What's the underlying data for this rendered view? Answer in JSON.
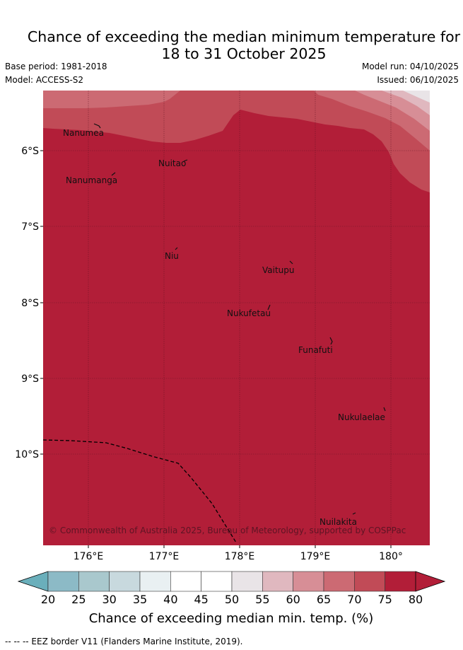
{
  "header": {
    "title_line1": "Chance of exceeding the median minimum temperature for",
    "title_line2": "18 to 31 October 2025",
    "base_period": "Base period: 1981-2018",
    "model": "Model: ACCESS-S2",
    "model_run": "Model run: 04/10/2025",
    "issued": "Issued: 06/10/2025"
  },
  "map": {
    "places": [
      "Nanumea",
      "Nuitao",
      "Nanumanga",
      "Niu",
      "Vaitupu",
      "Nukufetau",
      "Funafuti",
      "Nukulaelae",
      "Nuilakita"
    ],
    "copyright": "© Commonwealth of Australia 2025, Bureau of Meteorology, supported by COSPPac",
    "lon_ticks": [
      "176°E",
      "177°E",
      "178°E",
      "179°E",
      "180°"
    ],
    "lat_ticks": [
      "6°S",
      "7°S",
      "8°S",
      "9°S",
      "10°S"
    ]
  },
  "colorbar": {
    "ticks": [
      "20",
      "25",
      "30",
      "35",
      "40",
      "45",
      "50",
      "55",
      "60",
      "65",
      "70",
      "75",
      "80"
    ],
    "colors": [
      "#6aafbb",
      "#8cbac6",
      "#a9c8cd",
      "#c8d9de",
      "#e9f0f2",
      "#ffffff",
      "#ffffff",
      "#e9e4e7",
      "#e0b8bf",
      "#d78e96",
      "#cc6a73",
      "#c14b57",
      "#b21e38"
    ],
    "title": "Chance of exceeding median min. temp. (%)"
  },
  "footer": {
    "legend_text": "--  --  -- EEZ border V11 (Flanders Marine Institute, 2019)."
  }
}
